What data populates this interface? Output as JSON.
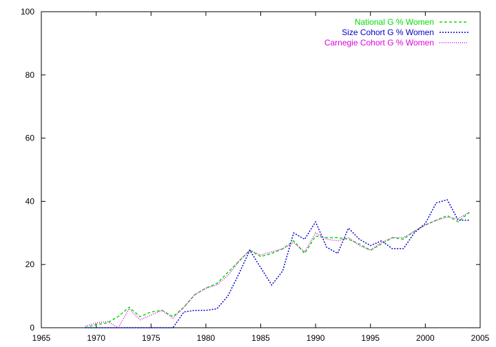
{
  "chart_data": {
    "type": "line",
    "title": "",
    "xlabel": "",
    "ylabel": "",
    "xlim": [
      1965,
      2005
    ],
    "ylim": [
      0,
      100
    ],
    "xticks": [
      1965,
      1970,
      1975,
      1980,
      1985,
      1990,
      1995,
      2000,
      2005
    ],
    "yticks": [
      0,
      20,
      40,
      60,
      80,
      100
    ],
    "legend_position": "top-right",
    "series": [
      {
        "name": "National G % Women",
        "color": "#00dd00",
        "dash": "dashed",
        "x": [
          1969,
          1970,
          1971,
          1972,
          1973,
          1974,
          1975,
          1976,
          1977,
          1978,
          1979,
          1980,
          1981,
          1982,
          1983,
          1984,
          1985,
          1986,
          1987,
          1988,
          1989,
          1990,
          1991,
          1992,
          1993,
          1994,
          1995,
          1996,
          1997,
          1998,
          1999,
          2000,
          2001,
          2002,
          2003,
          2004
        ],
        "y": [
          0,
          1,
          1.5,
          3.5,
          6.5,
          3.5,
          5,
          5.5,
          3.5,
          6.5,
          10.5,
          12.5,
          14,
          17.5,
          21,
          24.5,
          22.5,
          23.5,
          25,
          27.5,
          23.5,
          29,
          28.5,
          28.5,
          28,
          26.5,
          24.5,
          26.5,
          28.5,
          28,
          30.5,
          32.5,
          34,
          35.5,
          33.5,
          36.5
        ]
      },
      {
        "name": "Size Cohort G % Women",
        "color": "#0000cc",
        "dash": "dotted",
        "x": [
          1969,
          1970,
          1971,
          1972,
          1973,
          1974,
          1975,
          1976,
          1977,
          1978,
          1979,
          1980,
          1981,
          1982,
          1983,
          1984,
          1985,
          1986,
          1987,
          1988,
          1989,
          1990,
          1991,
          1992,
          1993,
          1994,
          1995,
          1996,
          1997,
          1998,
          1999,
          2000,
          2001,
          2002,
          2003,
          2004
        ],
        "y": [
          0,
          0,
          0,
          0,
          0,
          0,
          0,
          0,
          0,
          5,
          5.5,
          5.5,
          6,
          10,
          17,
          24.5,
          19,
          13.5,
          18,
          30,
          28,
          33.5,
          25.5,
          23.5,
          31.5,
          28,
          26,
          27.5,
          25,
          25,
          30,
          33,
          39.5,
          40.5,
          34,
          34
        ]
      },
      {
        "name": "Carnegie Cohort G % Women",
        "color": "#dd00dd",
        "dash": "fine-dotted",
        "x": [
          1969,
          1970,
          1971,
          1972,
          1973,
          1974,
          1975,
          1976,
          1977,
          1978,
          1979,
          1980,
          1981,
          1982,
          1983,
          1984,
          1985,
          1986,
          1987,
          1988,
          1989,
          1990,
          1991,
          1992,
          1993,
          1994,
          1995,
          1996,
          1997,
          1998,
          1999,
          2000,
          2001,
          2002,
          2003,
          2004
        ],
        "y": [
          0.5,
          1.5,
          2,
          0,
          6,
          2.5,
          4,
          5.5,
          3,
          6.5,
          10.5,
          12.5,
          13.5,
          16.5,
          21,
          24.5,
          23,
          24,
          25,
          27,
          24,
          30,
          28,
          27.5,
          28.5,
          26,
          24.5,
          27,
          28.5,
          28.5,
          30.5,
          32.5,
          34,
          35,
          34.5,
          36.5
        ]
      }
    ]
  }
}
